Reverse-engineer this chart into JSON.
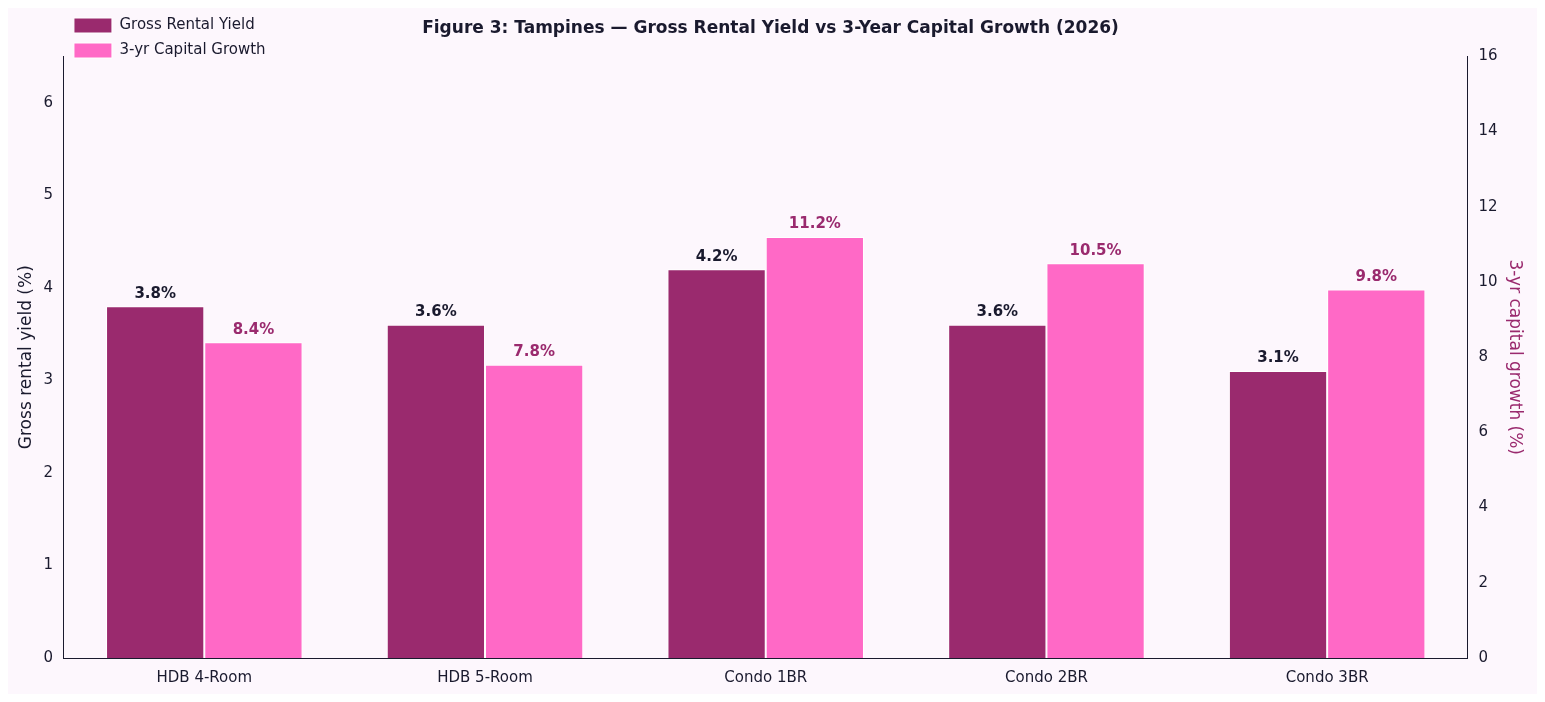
{
  "chart_data": {
    "type": "bar",
    "title": "Figure 3: Tampines — Gross Rental Yield vs 3-Year Capital Growth (2026)",
    "ylabel": "Gross rental yield (%)",
    "y2label": "3-yr capital growth (%)",
    "categories": [
      "HDB 4-Room",
      "HDB 5-Room",
      "Condo 1BR",
      "Condo 2BR",
      "Condo 3BR"
    ],
    "series": [
      {
        "name": "Gross Rental Yield",
        "color": "#9a2a6e",
        "values": [
          3.8,
          3.6,
          4.2,
          3.6,
          3.1
        ],
        "value_labels": [
          "3.8%",
          "3.6%",
          "4.2%",
          "3.6%",
          "3.1%"
        ]
      },
      {
        "name": "3-yr Capital Growth",
        "color": "#ff69c6",
        "axis": "y2",
        "values": [
          8.4,
          7.8,
          11.2,
          10.5,
          9.8
        ],
        "value_labels": [
          "8.4%",
          "7.8%",
          "11.2%",
          "10.5%",
          "9.8%"
        ]
      }
    ],
    "ylim": [
      0,
      6.5
    ],
    "yticks": [
      0,
      1,
      2,
      3,
      4,
      5,
      6
    ],
    "y2lim": [
      0,
      16
    ],
    "y2ticks": [
      0,
      2,
      4,
      6,
      8,
      10,
      12,
      14,
      16
    ],
    "grid": false,
    "legend": "top left"
  }
}
